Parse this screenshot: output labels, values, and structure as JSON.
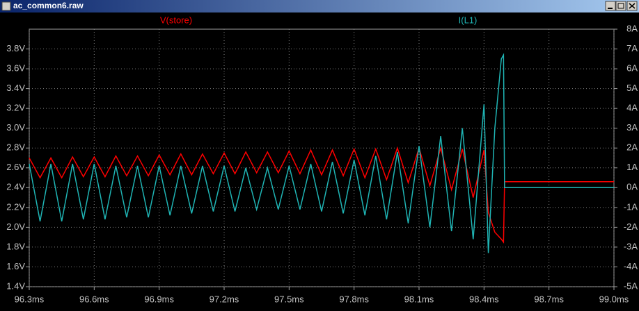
{
  "window": {
    "title": "ac_common6.raw"
  },
  "chart_data": {
    "type": "line",
    "x": [
      96.3,
      96.35,
      96.4,
      96.45,
      96.5,
      96.55,
      96.6,
      96.65,
      96.7,
      96.75,
      96.8,
      96.85,
      96.9,
      96.95,
      97.0,
      97.05,
      97.1,
      97.15,
      97.2,
      97.25,
      97.3,
      97.35,
      97.4,
      97.45,
      97.5,
      97.55,
      97.6,
      97.65,
      97.7,
      97.75,
      97.8,
      97.85,
      97.9,
      97.95,
      98.0,
      98.05,
      98.1,
      98.15,
      98.2,
      98.25,
      98.3,
      98.35,
      98.4,
      98.42,
      98.45,
      98.48,
      98.49,
      98.495,
      99.0
    ],
    "series": [
      {
        "name": "V(store)",
        "color": "#ff0000",
        "axis": "y",
        "values": [
          2.7,
          2.5,
          2.7,
          2.5,
          2.71,
          2.51,
          2.71,
          2.51,
          2.72,
          2.52,
          2.72,
          2.52,
          2.73,
          2.53,
          2.74,
          2.53,
          2.74,
          2.54,
          2.75,
          2.54,
          2.76,
          2.55,
          2.76,
          2.55,
          2.77,
          2.54,
          2.78,
          2.53,
          2.78,
          2.52,
          2.79,
          2.5,
          2.79,
          2.48,
          2.8,
          2.45,
          2.8,
          2.42,
          2.8,
          2.38,
          2.79,
          2.3,
          2.78,
          2.15,
          1.95,
          1.88,
          1.85,
          2.46,
          2.46
        ]
      },
      {
        "name": "I(L1)",
        "color": "#1fb4b4",
        "axis": "y2",
        "values": [
          1.2,
          -1.7,
          1.2,
          -1.7,
          1.2,
          -1.6,
          1.2,
          -1.6,
          1.1,
          -1.5,
          1.1,
          -1.5,
          1.1,
          -1.4,
          1.1,
          -1.3,
          1.1,
          -1.2,
          1.1,
          -1.2,
          1.0,
          -1.1,
          1.0,
          -1.1,
          1.1,
          -1.1,
          1.2,
          -1.2,
          1.3,
          -1.3,
          1.4,
          -1.4,
          1.6,
          -1.6,
          1.8,
          -1.8,
          2.1,
          -2.0,
          2.6,
          -2.2,
          3.0,
          -2.6,
          4.2,
          -3.3,
          3.0,
          6.5,
          6.7,
          0.0,
          0.0
        ]
      }
    ],
    "xlim": [
      96.3,
      99.0
    ],
    "xticks": [
      {
        "value": 96.3,
        "label": "96.3ms"
      },
      {
        "value": 96.6,
        "label": "96.6ms"
      },
      {
        "value": 96.9,
        "label": "96.9ms"
      },
      {
        "value": 97.2,
        "label": "97.2ms"
      },
      {
        "value": 97.5,
        "label": "97.5ms"
      },
      {
        "value": 97.8,
        "label": "97.8ms"
      },
      {
        "value": 98.1,
        "label": "98.1ms"
      },
      {
        "value": 98.4,
        "label": "98.4ms"
      },
      {
        "value": 98.7,
        "label": "98.7ms"
      },
      {
        "value": 99.0,
        "label": "99.0ms"
      }
    ],
    "ylim": [
      1.4,
      4.0
    ],
    "yticks": [
      {
        "value": 1.4,
        "label": "1.4V"
      },
      {
        "value": 1.6,
        "label": "1.6V"
      },
      {
        "value": 1.8,
        "label": "1.8V"
      },
      {
        "value": 2.0,
        "label": "2.0V"
      },
      {
        "value": 2.2,
        "label": "2.2V"
      },
      {
        "value": 2.4,
        "label": "2.4V"
      },
      {
        "value": 2.6,
        "label": "2.6V"
      },
      {
        "value": 2.8,
        "label": "2.8V"
      },
      {
        "value": 3.0,
        "label": "3.0V"
      },
      {
        "value": 3.2,
        "label": "3.2V"
      },
      {
        "value": 3.4,
        "label": "3.4V"
      },
      {
        "value": 3.6,
        "label": "3.6V"
      },
      {
        "value": 3.8,
        "label": "3.8V"
      }
    ],
    "y2lim": [
      -5,
      8
    ],
    "y2ticks": [
      {
        "value": -5,
        "label": "-5A"
      },
      {
        "value": -4,
        "label": "-4A"
      },
      {
        "value": -3,
        "label": "-3A"
      },
      {
        "value": -2,
        "label": "-2A"
      },
      {
        "value": -1,
        "label": "-1A"
      },
      {
        "value": 0,
        "label": "0A"
      },
      {
        "value": 1,
        "label": "1A"
      },
      {
        "value": 2,
        "label": "2A"
      },
      {
        "value": 3,
        "label": "3A"
      },
      {
        "value": 4,
        "label": "4A"
      },
      {
        "value": 5,
        "label": "5A"
      },
      {
        "value": 6,
        "label": "6A"
      },
      {
        "value": 7,
        "label": "7A"
      },
      {
        "value": 8,
        "label": "8A"
      }
    ],
    "grid": true
  }
}
